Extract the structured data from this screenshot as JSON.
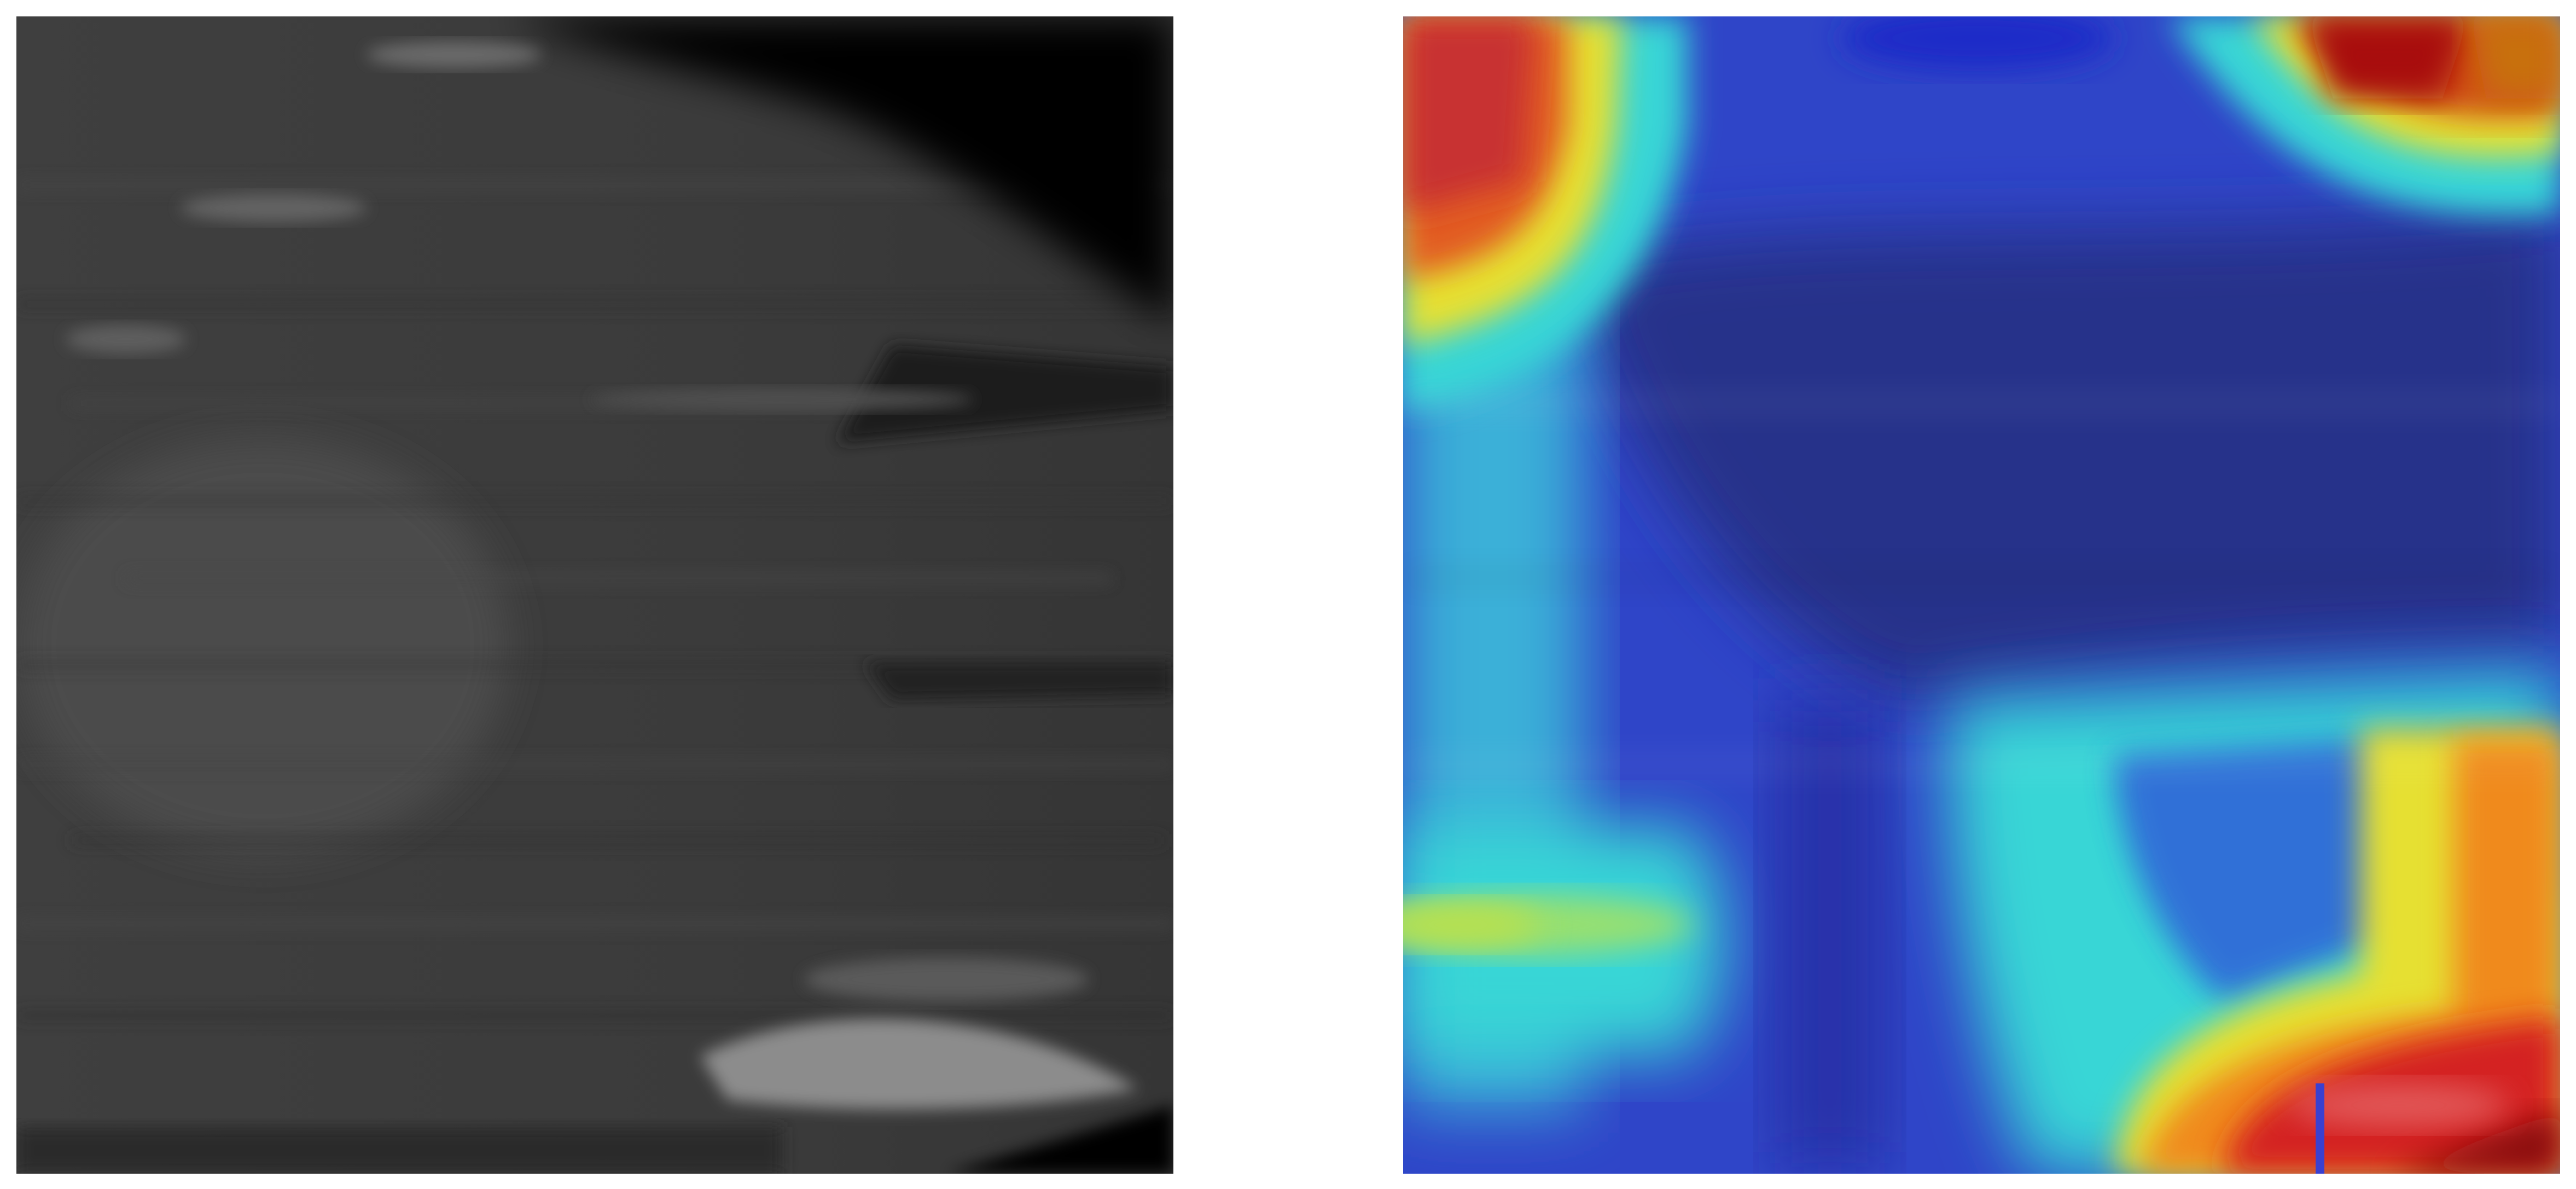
{
  "figure": {
    "layout": "side-by-side",
    "panels": [
      {
        "id": "original-scan",
        "colormap": "grayscale",
        "palette": {
          "background": "#3c3c3c",
          "dark_corner": "#000000",
          "highlight": "#9a9a9a"
        }
      },
      {
        "id": "heatmap-overlay",
        "colormap": "jet",
        "palette": {
          "cold": "#2a2f8a",
          "cool": "#2f4fd8",
          "cyan": "#38d6d6",
          "yellow": "#e6e030",
          "orange": "#f08a1c",
          "red": "#d42020",
          "dark_red": "#8a0d0d"
        }
      }
    ]
  }
}
